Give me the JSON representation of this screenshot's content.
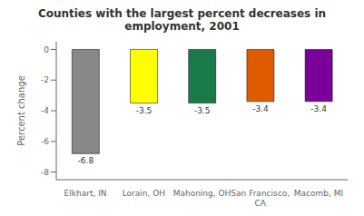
{
  "chart_data": {
    "type": "bar",
    "title": "Counties with the largest percent decreases in\nemployment, 2001",
    "categories": [
      "Elkhart, IN",
      "Lorain, OH",
      "Mahoning, OH",
      "San Francisco,\nCA",
      "Macomb, MI"
    ],
    "values": [
      -6.8,
      -3.5,
      -3.5,
      -3.4,
      -3.4
    ],
    "colors": [
      "#888888",
      "#ffff00",
      "#1a7a4a",
      "#e05a00",
      "#7b0099"
    ],
    "ylabel": "Percent change",
    "ylim": [
      -8.5,
      0.5
    ],
    "yticks": [
      0,
      -2,
      -4,
      -6,
      -8
    ],
    "data_labels": true,
    "grid": false
  }
}
